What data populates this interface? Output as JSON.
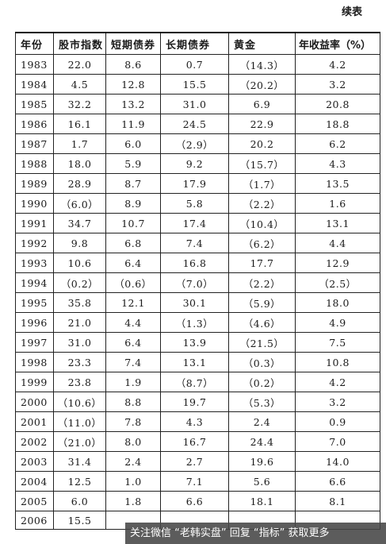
{
  "page": {
    "continued_label": "续表"
  },
  "table": {
    "headers": [
      "年份",
      "股市指数",
      "短期债券",
      "长期债券",
      "黄金",
      "年收益率（%）"
    ],
    "rows": [
      [
        "1983",
        "22.0",
        "8.6",
        "0.7",
        "（14.3）",
        "4.2"
      ],
      [
        "1984",
        "4.5",
        "12.8",
        "15.5",
        "（20.2）",
        "3.2"
      ],
      [
        "1985",
        "32.2",
        "13.2",
        "31.0",
        "6.9",
        "20.8"
      ],
      [
        "1986",
        "16.1",
        "11.9",
        "24.5",
        "22.9",
        "18.8"
      ],
      [
        "1987",
        "1.7",
        "6.0",
        "（2.9）",
        "20.2",
        "6.2"
      ],
      [
        "1988",
        "18.0",
        "5.9",
        "9.2",
        "（15.7）",
        "4.3"
      ],
      [
        "1989",
        "28.9",
        "8.7",
        "17.9",
        "（1.7）",
        "13.5"
      ],
      [
        "1990",
        "（6.0）",
        "8.9",
        "5.8",
        "（2.2）",
        "1.6"
      ],
      [
        "1991",
        "34.7",
        "10.7",
        "17.4",
        "（10.4）",
        "13.1"
      ],
      [
        "1992",
        "9.8",
        "6.8",
        "7.4",
        "（6.2）",
        "4.4"
      ],
      [
        "1993",
        "10.6",
        "6.4",
        "16.8",
        "17.7",
        "12.9"
      ],
      [
        "1994",
        "（0.2）",
        "（0.6）",
        "（7.0）",
        "（2.2）",
        "（2.5）"
      ],
      [
        "1995",
        "35.8",
        "12.1",
        "30.1",
        "（5.9）",
        "18.0"
      ],
      [
        "1996",
        "21.0",
        "4.4",
        "（1.3）",
        "（4.6）",
        "4.9"
      ],
      [
        "1997",
        "31.0",
        "6.4",
        "13.9",
        "（21.5）",
        "7.5"
      ],
      [
        "1998",
        "23.3",
        "7.4",
        "13.1",
        "（0.3）",
        "10.8"
      ],
      [
        "1999",
        "23.8",
        "1.9",
        "（8.7）",
        "（0.2）",
        "4.2"
      ],
      [
        "2000",
        "（10.6）",
        "8.8",
        "19.7",
        "（5.3）",
        "3.2"
      ],
      [
        "2001",
        "（11.0）",
        "7.8",
        "4.3",
        "2.4",
        "0.9"
      ],
      [
        "2002",
        "（21.0）",
        "8.0",
        "16.7",
        "24.4",
        "7.0"
      ],
      [
        "2003",
        "31.4",
        "2.4",
        "2.7",
        "19.6",
        "14.0"
      ],
      [
        "2004",
        "12.5",
        "1.0",
        "7.1",
        "5.6",
        "6.6"
      ],
      [
        "2005",
        "6.0",
        "1.8",
        "6.6",
        "18.1",
        "8.1"
      ],
      [
        "2006",
        "15.5",
        "",
        "",
        "",
        ""
      ]
    ]
  },
  "watermark": {
    "text": "关注微信 “老韩实盘” 回复 “指标” 获取更多"
  }
}
